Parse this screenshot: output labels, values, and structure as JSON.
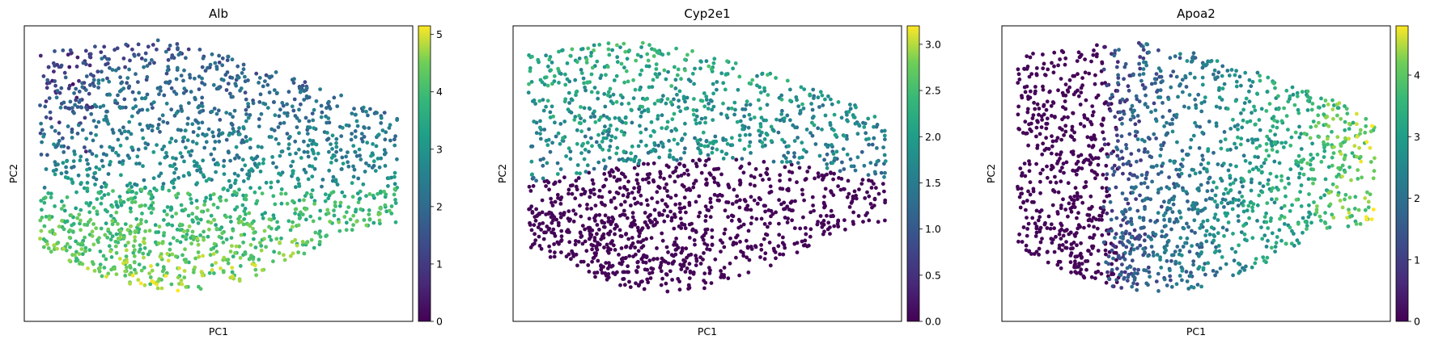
{
  "chart_data": [
    {
      "type": "scatter",
      "title": "Alb",
      "xlabel": "PC1",
      "ylabel": "PC2",
      "x_ticks_shown": false,
      "y_ticks_shown": false,
      "colormap": "viridis",
      "colorbar": {
        "min": 0,
        "max": 5.15,
        "ticks": [
          0,
          1,
          2,
          3,
          4,
          5
        ],
        "tick_labels": [
          "0",
          "1",
          "2",
          "3",
          "4",
          "5"
        ]
      },
      "pattern": "high values lower-left and lower-right, mid values in upper half, low values scattered in upper-left",
      "n_points": 1700,
      "seed": 11
    },
    {
      "type": "scatter",
      "title": "Cyp2e1",
      "xlabel": "PC1",
      "ylabel": "PC2",
      "x_ticks_shown": false,
      "y_ticks_shown": false,
      "colormap": "viridis",
      "colorbar": {
        "min": 0,
        "max": 3.2,
        "ticks": [
          0,
          0.5,
          1,
          1.5,
          2,
          2.5,
          3
        ],
        "tick_labels": [
          "0.0",
          "0.5",
          "1.0",
          "1.5",
          "2.0",
          "2.5",
          "3.0"
        ]
      },
      "pattern": "high values in upper half, near-zero values in lower half",
      "n_points": 1700,
      "seed": 23
    },
    {
      "type": "scatter",
      "title": "Apoa2",
      "xlabel": "PC1",
      "ylabel": "PC2",
      "x_ticks_shown": false,
      "y_ticks_shown": false,
      "colormap": "viridis",
      "colorbar": {
        "min": 0,
        "max": 4.8,
        "ticks": [
          0,
          1,
          2,
          3,
          4
        ],
        "tick_labels": [
          "0",
          "1",
          "2",
          "3",
          "4"
        ]
      },
      "pattern": "near-zero values on the left, increasing toward the right",
      "n_points": 1700,
      "seed": 37
    }
  ]
}
